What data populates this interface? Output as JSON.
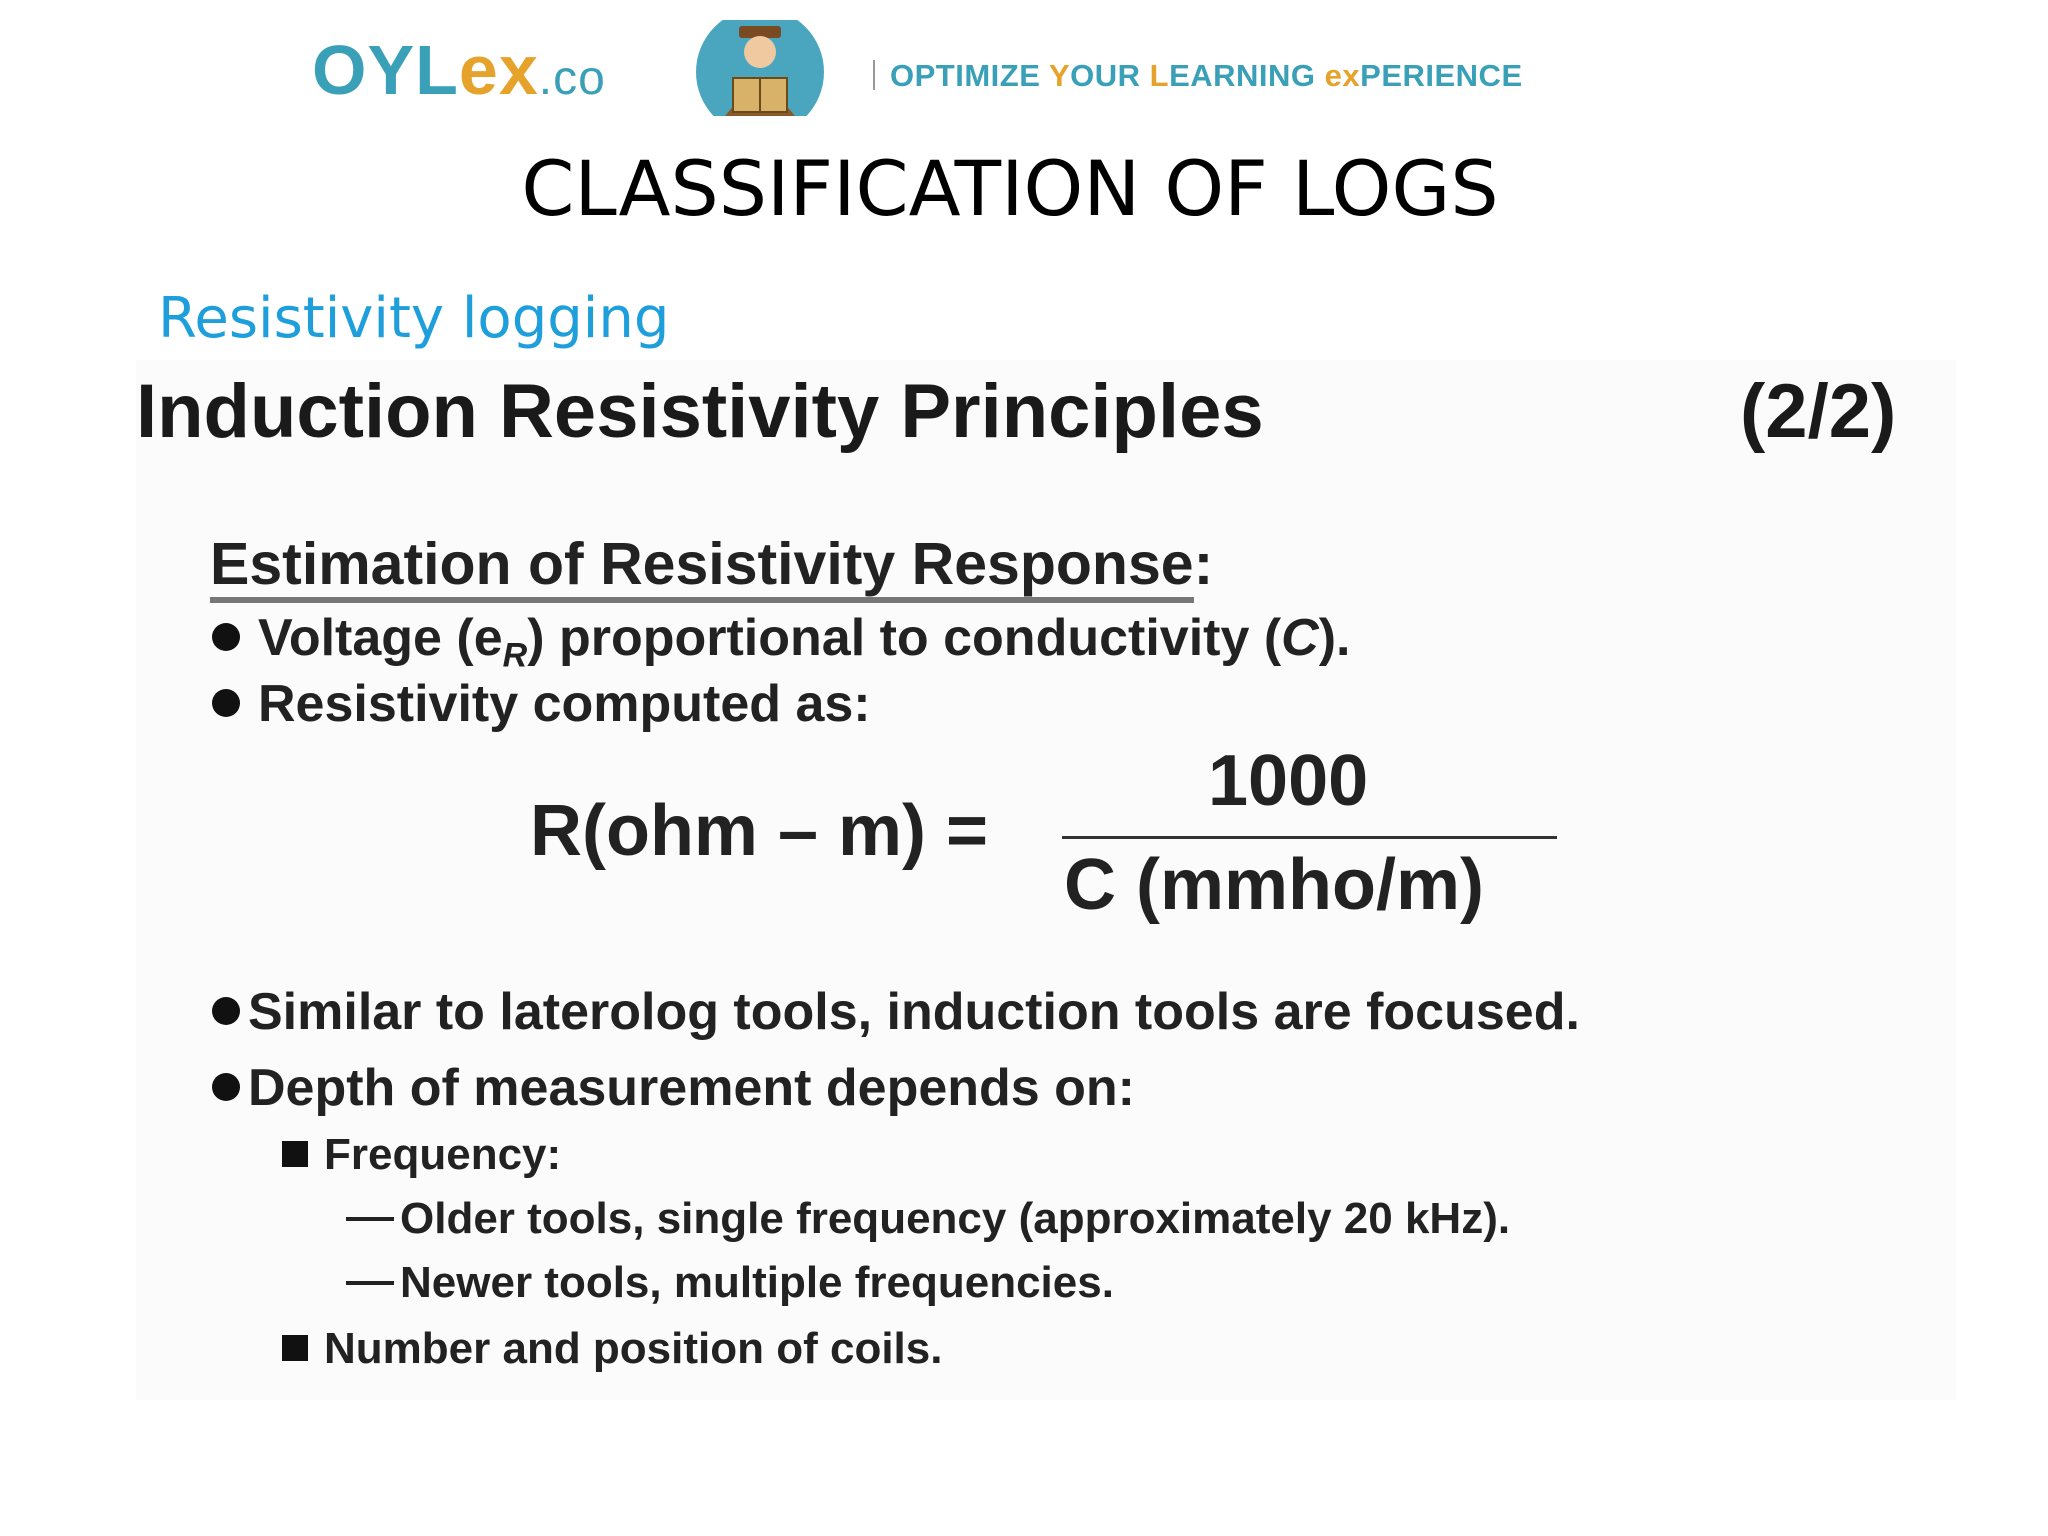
{
  "header": {
    "logo_main": "OYL",
    "logo_ex": "ex",
    "logo_co": ".co",
    "tagline_1": "OPTIMIZE ",
    "tagline_y": "Y",
    "tagline_2": "OUR ",
    "tagline_l": "L",
    "tagline_3": "EARNING ",
    "tagline_ex": "ex",
    "tagline_4": "PERIENCE",
    "colors": {
      "teal": "#3aa0b8",
      "orange": "#e6a32c"
    },
    "avatar_icon": "reading-person-icon"
  },
  "slide": {
    "title": "CLASSIFICATION OF LOGS",
    "section_label": "Resistivity logging"
  },
  "content": {
    "title": "Induction Resistivity Principles",
    "page_indicator": "(2/2)",
    "heading": "Estimation of Resistivity Response",
    "heading_colon": ":",
    "bullet1_pre": "Voltage (e",
    "bullet1_sub": "R",
    "bullet1_mid": ") proportional to conductivity (",
    "bullet1_c": "C",
    "bullet1_post": ").",
    "bullet2": "Resistivity computed as:",
    "formula": {
      "lhs": "R(ohm – m) =",
      "numerator": "1000",
      "denominator": "C (mmho/m)"
    },
    "bullet3": "Similar to laterolog tools, induction tools are focused.",
    "bullet4": "Depth of measurement depends on:",
    "sub1": "Frequency:",
    "dash1": "Older tools, single frequency (approximately 20 kHz).",
    "dash2": "Newer tools, multiple frequencies.",
    "sub2": "Number and position of coils."
  }
}
